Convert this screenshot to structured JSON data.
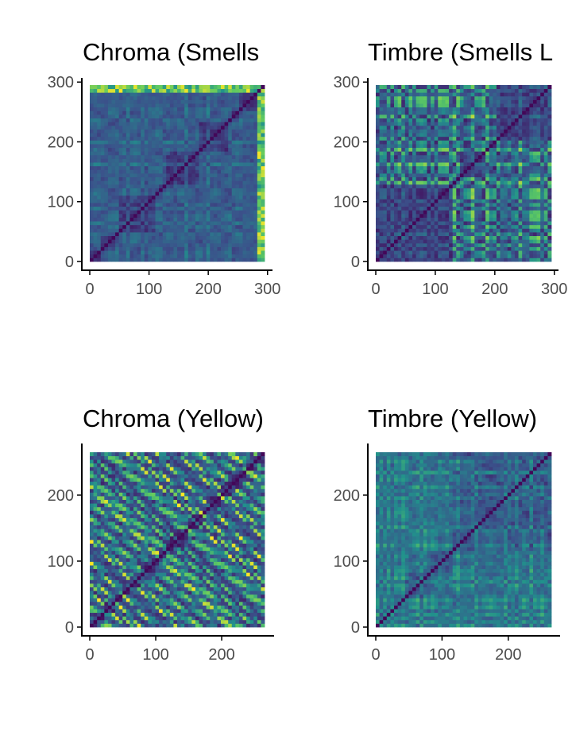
{
  "chart_data": [
    {
      "type": "heatmap",
      "title": "Chroma (Smells",
      "xlim": [
        0,
        295
      ],
      "ylim": [
        0,
        295
      ],
      "xticks": [
        0,
        100,
        200,
        300
      ],
      "yticks": [
        0,
        100,
        200,
        300
      ],
      "colormap": "viridis",
      "grid": false
    },
    {
      "type": "heatmap",
      "title": "Timbre (Smells L",
      "xlim": [
        0,
        295
      ],
      "ylim": [
        0,
        295
      ],
      "xticks": [
        0,
        100,
        200,
        300
      ],
      "yticks": [
        0,
        100,
        200,
        300
      ],
      "colormap": "viridis",
      "grid": false
    },
    {
      "type": "heatmap",
      "title": "Chroma (Yellow)",
      "xlim": [
        0,
        265
      ],
      "ylim": [
        0,
        265
      ],
      "xticks": [
        0,
        100,
        200
      ],
      "yticks": [
        0,
        100,
        200
      ],
      "colormap": "viridis",
      "grid": false
    },
    {
      "type": "heatmap",
      "title": "Timbre (Yellow)",
      "xlim": [
        0,
        265
      ],
      "ylim": [
        0,
        265
      ],
      "xticks": [
        0,
        100,
        200
      ],
      "yticks": [
        0,
        100,
        200
      ],
      "colormap": "viridis",
      "grid": false
    }
  ]
}
